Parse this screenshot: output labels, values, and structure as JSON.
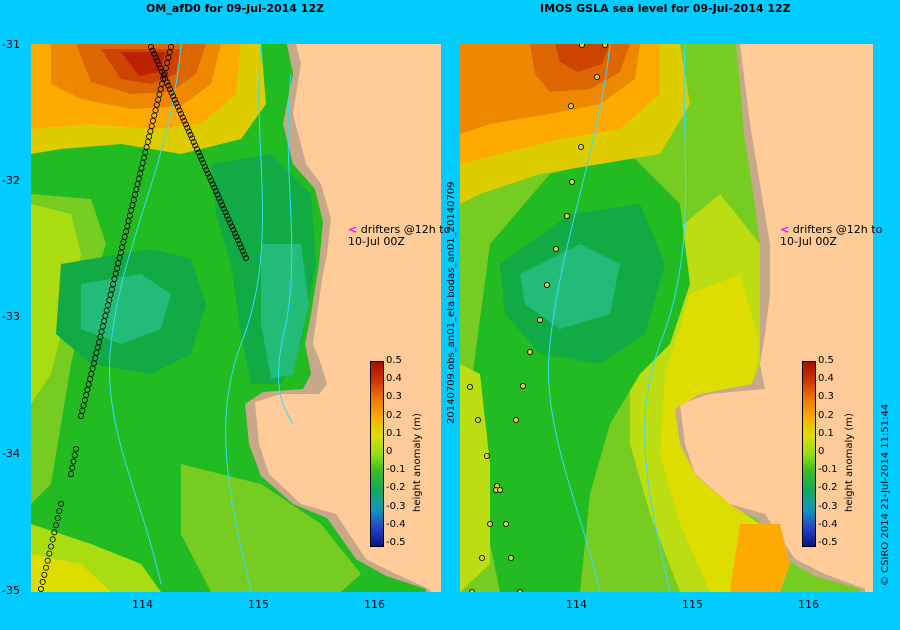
{
  "left_title": "OM_afD0 for 09-Jul-2014 12Z",
  "right_title": "IMOS GSLA sea level  for 09-Jul-2014 12Z",
  "y_ticks": [
    "-31",
    "-32",
    "-33",
    "-34",
    "-35"
  ],
  "x_ticks": [
    "114",
    "115",
    "116"
  ],
  "drifter_text_line1": "drifters @12h to",
  "drifter_text_line2": "10-Jul 00Z",
  "colorbar_label": "height anomaly (m)",
  "colorbar_ticks": [
    "0.5",
    "0.4",
    "0.3",
    "0.2",
    "0.1",
    "0",
    "-0.1",
    "-0.2",
    "-0.3",
    "-0.4",
    "-0.5"
  ],
  "left_vertical_text": "20140709.obs_an01_eta   bodas_an01_20140709",
  "copyright_text": "© CSIRO 2014   21-Jul-2014 11:51:44",
  "colors": {
    "land": "#ffcc99",
    "shelf": "#c8a88a",
    "current": "#33ddff",
    "drifter_arrow": "#ff00ff"
  }
}
